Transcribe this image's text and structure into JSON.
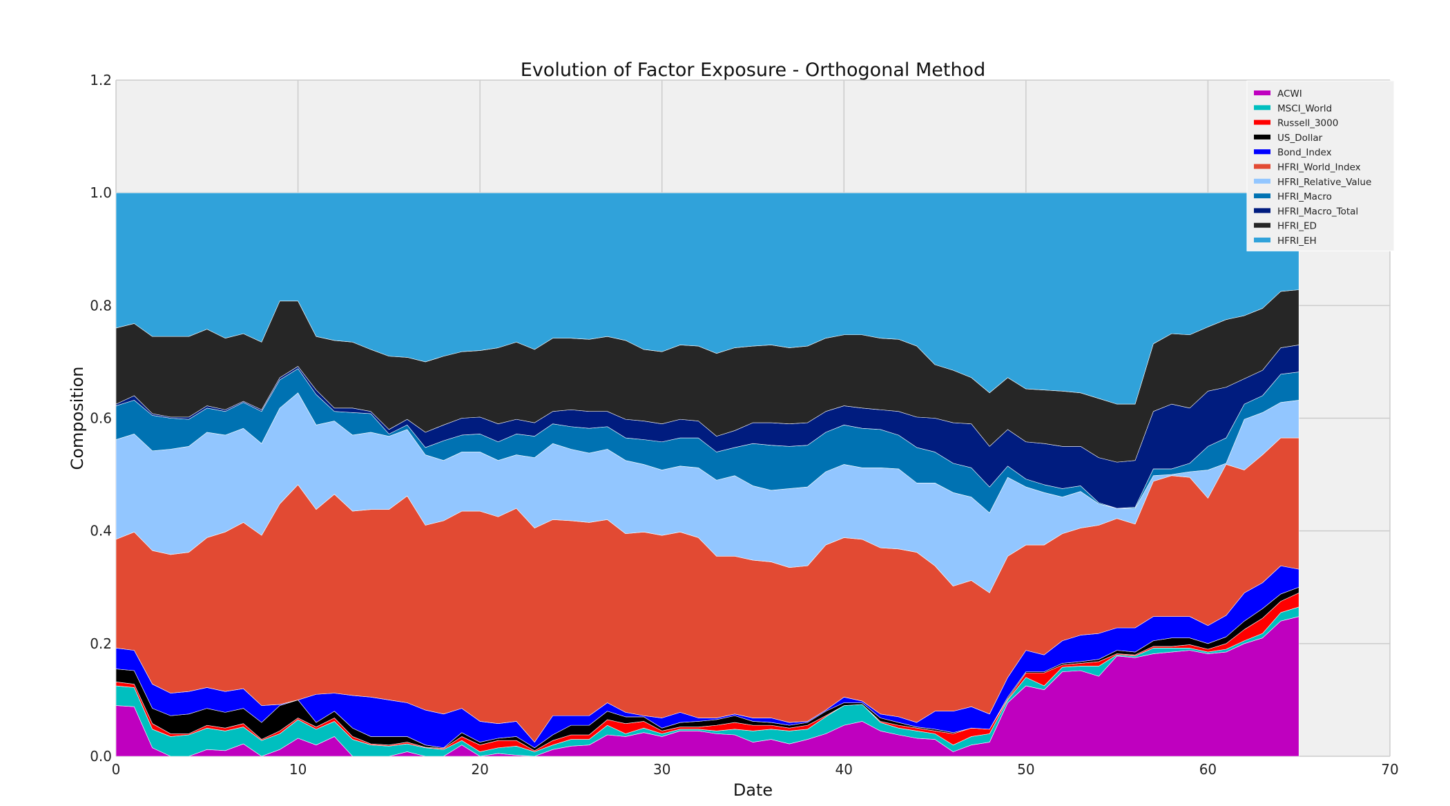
{
  "chart_data": {
    "type": "area",
    "stacked": true,
    "title": "Evolution of Factor Exposure - Orthogonal Method",
    "xlabel": "Date",
    "ylabel": "Composition",
    "xlim": [
      0,
      70
    ],
    "ylim": [
      0,
      1.2
    ],
    "xticks": [
      0,
      10,
      20,
      30,
      40,
      50,
      60,
      70
    ],
    "yticks": [
      0.0,
      0.2,
      0.4,
      0.6,
      0.8,
      1.0,
      1.2
    ],
    "xtick_labels": [
      "0",
      "10",
      "20",
      "30",
      "40",
      "50",
      "60",
      "70"
    ],
    "ytick_labels": [
      "0.0",
      "0.2",
      "0.4",
      "0.6",
      "0.8",
      "1.0",
      "1.2"
    ],
    "grid": true,
    "legend_position": "top-right",
    "background": "#f0f0f0",
    "x": [
      0,
      1,
      2,
      3,
      4,
      5,
      6,
      7,
      8,
      9,
      10,
      11,
      12,
      13,
      14,
      15,
      16,
      17,
      18,
      19,
      20,
      21,
      22,
      23,
      24,
      25,
      26,
      27,
      28,
      29,
      30,
      31,
      32,
      33,
      34,
      35,
      36,
      37,
      38,
      39,
      40,
      41,
      42,
      43,
      44,
      45,
      46,
      47,
      48,
      49,
      50,
      51,
      52,
      53,
      54,
      55,
      56,
      57,
      58,
      59,
      60,
      61,
      62,
      63,
      64,
      65
    ],
    "cumulative_top_values": {
      "ACWI": [
        0.09,
        0.088,
        0.015,
        0.0,
        0.0,
        0.012,
        0.01,
        0.022,
        0.0,
        0.012,
        0.032,
        0.02,
        0.035,
        0.0,
        0.0,
        0.0,
        0.008,
        0.0,
        0.0,
        0.02,
        0.0,
        0.005,
        0.002,
        0.0,
        0.012,
        0.018,
        0.02,
        0.038,
        0.035,
        0.042,
        0.035,
        0.045,
        0.045,
        0.04,
        0.038,
        0.025,
        0.03,
        0.022,
        0.03,
        0.04,
        0.055,
        0.062,
        0.045,
        0.038,
        0.032,
        0.03,
        0.008,
        0.02,
        0.025,
        0.095,
        0.125,
        0.118,
        0.15,
        0.152,
        0.142,
        0.178,
        0.175,
        0.182,
        0.185,
        0.188,
        0.182,
        0.185,
        0.2,
        0.21,
        0.24,
        0.248
      ],
      "MSCI_World": [
        0.125,
        0.122,
        0.048,
        0.035,
        0.038,
        0.05,
        0.045,
        0.052,
        0.028,
        0.04,
        0.065,
        0.048,
        0.062,
        0.03,
        0.02,
        0.018,
        0.022,
        0.015,
        0.012,
        0.028,
        0.008,
        0.015,
        0.018,
        0.008,
        0.02,
        0.03,
        0.03,
        0.055,
        0.04,
        0.05,
        0.04,
        0.048,
        0.048,
        0.045,
        0.048,
        0.045,
        0.048,
        0.045,
        0.048,
        0.07,
        0.09,
        0.092,
        0.06,
        0.05,
        0.045,
        0.04,
        0.02,
        0.035,
        0.04,
        0.1,
        0.14,
        0.125,
        0.158,
        0.16,
        0.16,
        0.18,
        0.178,
        0.192,
        0.192,
        0.192,
        0.185,
        0.19,
        0.205,
        0.218,
        0.255,
        0.265
      ],
      "Russell_3000": [
        0.132,
        0.128,
        0.058,
        0.04,
        0.04,
        0.055,
        0.05,
        0.058,
        0.03,
        0.045,
        0.068,
        0.052,
        0.068,
        0.035,
        0.022,
        0.02,
        0.025,
        0.016,
        0.014,
        0.035,
        0.02,
        0.028,
        0.028,
        0.01,
        0.028,
        0.038,
        0.038,
        0.065,
        0.058,
        0.062,
        0.045,
        0.052,
        0.052,
        0.055,
        0.06,
        0.055,
        0.055,
        0.05,
        0.055,
        0.072,
        0.09,
        0.092,
        0.062,
        0.055,
        0.05,
        0.045,
        0.04,
        0.05,
        0.048,
        0.102,
        0.148,
        0.148,
        0.162,
        0.165,
        0.168,
        0.182,
        0.18,
        0.195,
        0.195,
        0.198,
        0.19,
        0.2,
        0.225,
        0.245,
        0.275,
        0.29
      ],
      "US_Dollar": [
        0.155,
        0.152,
        0.085,
        0.072,
        0.075,
        0.085,
        0.078,
        0.085,
        0.06,
        0.09,
        0.1,
        0.06,
        0.08,
        0.05,
        0.035,
        0.035,
        0.035,
        0.02,
        0.015,
        0.042,
        0.025,
        0.032,
        0.035,
        0.015,
        0.038,
        0.055,
        0.055,
        0.08,
        0.07,
        0.07,
        0.05,
        0.06,
        0.062,
        0.065,
        0.072,
        0.062,
        0.06,
        0.055,
        0.06,
        0.08,
        0.095,
        0.095,
        0.068,
        0.06,
        0.052,
        0.048,
        0.042,
        0.05,
        0.048,
        0.105,
        0.15,
        0.15,
        0.165,
        0.168,
        0.172,
        0.188,
        0.185,
        0.205,
        0.21,
        0.21,
        0.2,
        0.212,
        0.24,
        0.262,
        0.288,
        0.3
      ],
      "Bond_Index": [
        0.192,
        0.188,
        0.128,
        0.112,
        0.115,
        0.122,
        0.115,
        0.12,
        0.09,
        0.092,
        0.1,
        0.11,
        0.112,
        0.108,
        0.105,
        0.1,
        0.095,
        0.082,
        0.075,
        0.085,
        0.062,
        0.058,
        0.062,
        0.025,
        0.072,
        0.072,
        0.072,
        0.095,
        0.078,
        0.072,
        0.068,
        0.078,
        0.068,
        0.068,
        0.075,
        0.068,
        0.068,
        0.06,
        0.062,
        0.082,
        0.105,
        0.098,
        0.075,
        0.07,
        0.06,
        0.08,
        0.08,
        0.088,
        0.075,
        0.14,
        0.188,
        0.18,
        0.205,
        0.215,
        0.218,
        0.228,
        0.228,
        0.248,
        0.248,
        0.248,
        0.232,
        0.25,
        0.29,
        0.308,
        0.338,
        0.332
      ],
      "HFRI_World_Index": [
        0.385,
        0.398,
        0.365,
        0.358,
        0.362,
        0.388,
        0.398,
        0.415,
        0.392,
        0.448,
        0.482,
        0.438,
        0.465,
        0.435,
        0.438,
        0.438,
        0.462,
        0.41,
        0.418,
        0.435,
        0.435,
        0.425,
        0.44,
        0.405,
        0.42,
        0.418,
        0.415,
        0.42,
        0.395,
        0.398,
        0.392,
        0.398,
        0.388,
        0.355,
        0.355,
        0.348,
        0.345,
        0.335,
        0.338,
        0.375,
        0.388,
        0.385,
        0.37,
        0.368,
        0.362,
        0.338,
        0.302,
        0.312,
        0.29,
        0.355,
        0.375,
        0.375,
        0.395,
        0.405,
        0.41,
        0.422,
        0.412,
        0.488,
        0.498,
        0.495,
        0.458,
        0.518,
        0.508,
        0.535,
        0.565,
        0.565
      ],
      "HFRI_Relative_Value": [
        0.562,
        0.572,
        0.542,
        0.545,
        0.55,
        0.575,
        0.57,
        0.582,
        0.555,
        0.618,
        0.645,
        0.588,
        0.595,
        0.57,
        0.575,
        0.568,
        0.58,
        0.535,
        0.525,
        0.54,
        0.54,
        0.525,
        0.535,
        0.53,
        0.555,
        0.545,
        0.538,
        0.545,
        0.525,
        0.518,
        0.508,
        0.515,
        0.512,
        0.49,
        0.498,
        0.48,
        0.472,
        0.475,
        0.478,
        0.505,
        0.518,
        0.512,
        0.512,
        0.51,
        0.485,
        0.485,
        0.468,
        0.46,
        0.432,
        0.495,
        0.478,
        0.468,
        0.46,
        0.47,
        0.448,
        0.44,
        0.44,
        0.498,
        0.5,
        0.505,
        0.508,
        0.52,
        0.598,
        0.61,
        0.628,
        0.632
      ],
      "HFRI_Macro": [
        0.622,
        0.632,
        0.605,
        0.6,
        0.598,
        0.618,
        0.612,
        0.628,
        0.612,
        0.668,
        0.688,
        0.642,
        0.612,
        0.61,
        0.608,
        0.572,
        0.588,
        0.548,
        0.56,
        0.57,
        0.572,
        0.558,
        0.572,
        0.568,
        0.59,
        0.585,
        0.582,
        0.585,
        0.565,
        0.562,
        0.558,
        0.565,
        0.565,
        0.54,
        0.548,
        0.555,
        0.552,
        0.55,
        0.552,
        0.575,
        0.588,
        0.582,
        0.58,
        0.57,
        0.548,
        0.54,
        0.52,
        0.512,
        0.478,
        0.515,
        0.492,
        0.482,
        0.475,
        0.48,
        0.45,
        0.44,
        0.442,
        0.51,
        0.51,
        0.52,
        0.55,
        0.565,
        0.625,
        0.64,
        0.678,
        0.682
      ],
      "HFRI_Macro_Total": [
        0.625,
        0.64,
        0.608,
        0.602,
        0.602,
        0.622,
        0.615,
        0.63,
        0.615,
        0.672,
        0.692,
        0.65,
        0.618,
        0.618,
        0.612,
        0.58,
        0.598,
        0.575,
        0.588,
        0.6,
        0.602,
        0.59,
        0.598,
        0.592,
        0.612,
        0.615,
        0.612,
        0.612,
        0.598,
        0.595,
        0.59,
        0.598,
        0.595,
        0.568,
        0.578,
        0.592,
        0.592,
        0.59,
        0.592,
        0.612,
        0.622,
        0.618,
        0.615,
        0.612,
        0.602,
        0.6,
        0.592,
        0.59,
        0.55,
        0.58,
        0.558,
        0.555,
        0.55,
        0.55,
        0.53,
        0.522,
        0.525,
        0.612,
        0.625,
        0.618,
        0.648,
        0.655,
        0.67,
        0.685,
        0.725,
        0.73
      ],
      "HFRI_ED": [
        0.76,
        0.768,
        0.745,
        0.745,
        0.745,
        0.758,
        0.742,
        0.75,
        0.735,
        0.808,
        0.808,
        0.745,
        0.738,
        0.735,
        0.722,
        0.71,
        0.708,
        0.7,
        0.71,
        0.718,
        0.72,
        0.725,
        0.735,
        0.722,
        0.742,
        0.742,
        0.74,
        0.745,
        0.738,
        0.722,
        0.718,
        0.73,
        0.728,
        0.715,
        0.725,
        0.728,
        0.73,
        0.725,
        0.728,
        0.742,
        0.748,
        0.748,
        0.742,
        0.74,
        0.728,
        0.695,
        0.685,
        0.672,
        0.645,
        0.672,
        0.652,
        0.65,
        0.648,
        0.645,
        0.635,
        0.625,
        0.625,
        0.732,
        0.75,
        0.748,
        0.762,
        0.775,
        0.782,
        0.795,
        0.825,
        0.828
      ],
      "HFRI_EH": [
        1.0,
        1.0,
        1.0,
        1.0,
        1.0,
        1.0,
        1.0,
        1.0,
        1.0,
        1.0,
        1.0,
        1.0,
        1.0,
        1.0,
        1.0,
        1.0,
        1.0,
        1.0,
        1.0,
        1.0,
        1.0,
        1.0,
        1.0,
        1.0,
        1.0,
        1.0,
        1.0,
        1.0,
        1.0,
        1.0,
        1.0,
        1.0,
        1.0,
        1.0,
        1.0,
        1.0,
        1.0,
        1.0,
        1.0,
        1.0,
        1.0,
        1.0,
        1.0,
        1.0,
        1.0,
        1.0,
        1.0,
        1.0,
        1.0,
        1.0,
        1.0,
        1.0,
        1.0,
        1.0,
        1.0,
        1.0,
        1.0,
        1.0,
        1.0,
        1.0,
        1.0,
        1.0,
        1.0,
        1.0,
        1.0,
        1.0
      ]
    },
    "series": [
      {
        "name": "ACWI",
        "color": "#bf00bf"
      },
      {
        "name": "MSCI_World",
        "color": "#00bfbf"
      },
      {
        "name": "Russell_3000",
        "color": "#ff0000"
      },
      {
        "name": "US_Dollar",
        "color": "#000000"
      },
      {
        "name": "Bond_Index",
        "color": "#0000ff"
      },
      {
        "name": "HFRI_World_Index",
        "color": "#e24a33"
      },
      {
        "name": "HFRI_Relative_Value",
        "color": "#92c6ff"
      },
      {
        "name": "HFRI_Macro",
        "color": "#0072b2"
      },
      {
        "name": "HFRI_Macro_Total",
        "color": "#001c7f"
      },
      {
        "name": "HFRI_ED",
        "color": "#262626"
      },
      {
        "name": "HFRI_EH",
        "color": "#30a2da"
      }
    ]
  }
}
